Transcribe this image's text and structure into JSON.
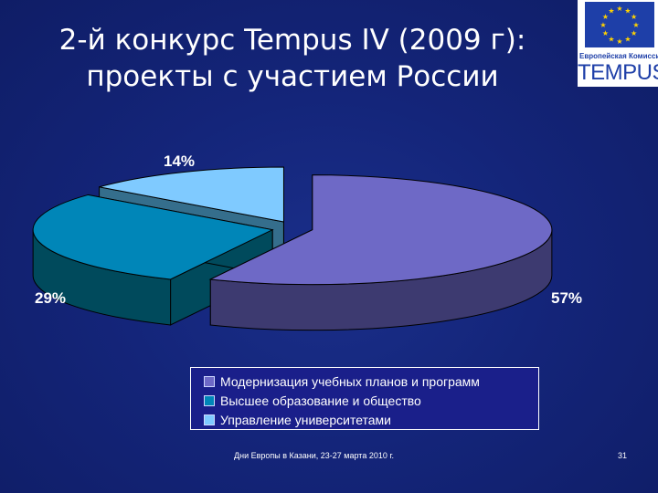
{
  "slide": {
    "title_line1": "2-й конкурс Tempus IV (2009 г):",
    "title_line2": "проекты с участием России",
    "footer": "Дни Европы в Казани, 23-27 марта 2010 г.",
    "page_number": "31"
  },
  "logo": {
    "tagline": "Европейская Комиссия",
    "brand": "TEMPUS",
    "icon": "eu-stars-flag-icon"
  },
  "colors": {
    "background": "#14257a",
    "slice_top": [
      "#6e69c6",
      "#0086b8",
      "#7fcaff"
    ],
    "slice_side": [
      "#3d3a70",
      "#004a5c",
      "#356e8c"
    ]
  },
  "chart_data": {
    "type": "pie",
    "three_d": true,
    "exploded": true,
    "legend_position": "bottom",
    "series": [
      {
        "name": "Модернизация учебных планов и программ",
        "value": 57,
        "label": "57%"
      },
      {
        "name": "Высшее образование и общество",
        "value": 29,
        "label": "29%"
      },
      {
        "name": "Управление университетами",
        "value": 14,
        "label": "14%"
      }
    ]
  }
}
